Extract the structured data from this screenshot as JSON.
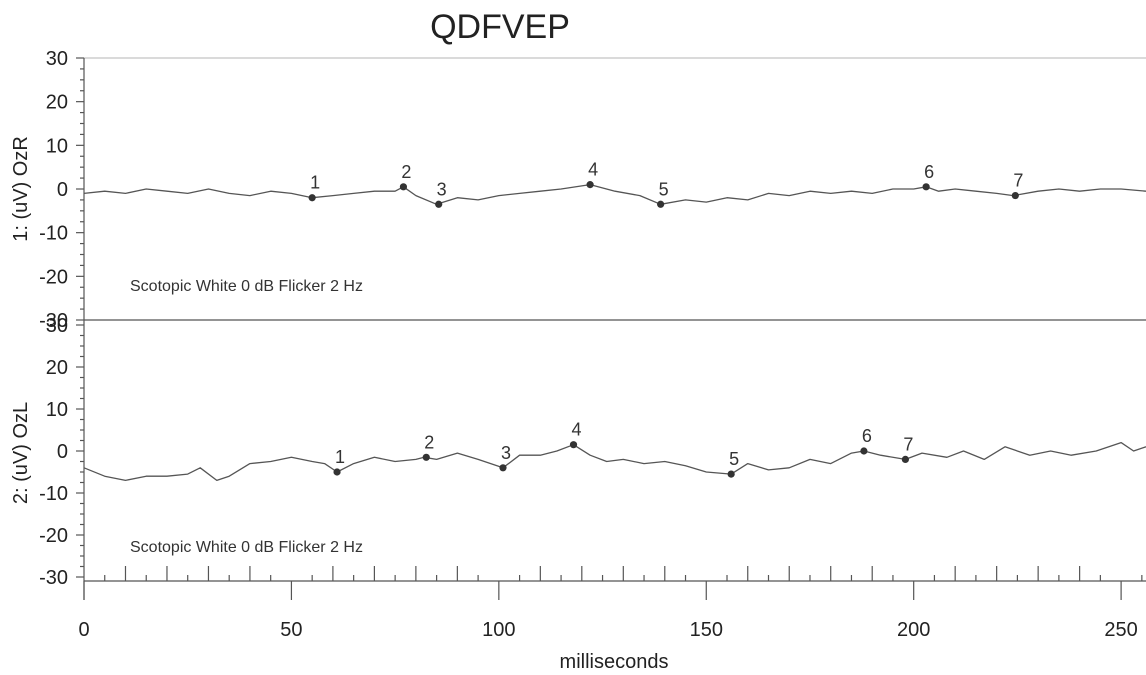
{
  "chart_data": {
    "type": "line",
    "title": "QDFVEP",
    "xlabel": "milliseconds",
    "xlim": [
      0,
      256
    ],
    "xticks": [
      0,
      50,
      100,
      150,
      200,
      250
    ],
    "panels": [
      {
        "ylabel": "1: (uV) OzR",
        "ylim": [
          -30,
          30
        ],
        "yticks": [
          30,
          20,
          10,
          0,
          -10,
          -20,
          -30
        ],
        "annotation": "Scotopic  White 0 dB Flicker 2 Hz",
        "series": {
          "x": [
            0,
            5,
            10,
            15,
            20,
            25,
            30,
            35,
            40,
            45,
            50,
            55,
            60,
            65,
            70,
            75,
            77,
            80,
            85,
            90,
            95,
            100,
            105,
            110,
            115,
            122,
            128,
            134,
            139,
            145,
            150,
            155,
            160,
            165,
            170,
            175,
            180,
            185,
            190,
            195,
            200,
            203,
            206,
            210,
            215,
            220,
            224,
            230,
            235,
            240,
            245,
            250,
            256
          ],
          "y": [
            -1,
            -0.5,
            -1,
            0,
            -0.5,
            -1,
            0,
            -1,
            -1.5,
            -0.5,
            -1,
            -2,
            -1.5,
            -1,
            -0.5,
            -0.5,
            0.5,
            -1.5,
            -3.5,
            -2,
            -2.5,
            -1.5,
            -1,
            -0.5,
            0,
            1,
            -0.5,
            -1.5,
            -3.5,
            -2.5,
            -3,
            -2,
            -2.5,
            -1,
            -1.5,
            -0.5,
            -1,
            -0.5,
            -1,
            0,
            0,
            0.5,
            -0.5,
            0,
            -0.5,
            -1,
            -1.5,
            -0.5,
            0,
            -0.5,
            0,
            0,
            -0.5
          ]
        },
        "markers": [
          {
            "label": "1",
            "x": 55,
            "y": -2
          },
          {
            "label": "2",
            "x": 77,
            "y": 0.5
          },
          {
            "label": "3",
            "x": 85.5,
            "y": -3.5
          },
          {
            "label": "4",
            "x": 122,
            "y": 1
          },
          {
            "label": "5",
            "x": 139,
            "y": -3.5
          },
          {
            "label": "6",
            "x": 203,
            "y": 0.5
          },
          {
            "label": "7",
            "x": 224.5,
            "y": -1.5
          }
        ]
      },
      {
        "ylabel": "2: (uV) OzL",
        "ylim": [
          -30,
          30
        ],
        "yticks": [
          30,
          20,
          10,
          0,
          -10,
          -20,
          -30
        ],
        "annotation": "Scotopic  White 0 dB Flicker 2 Hz",
        "series": {
          "x": [
            0,
            5,
            10,
            15,
            20,
            25,
            28,
            32,
            35,
            40,
            45,
            50,
            55,
            58,
            61,
            65,
            70,
            75,
            80,
            82,
            85,
            90,
            95,
            101,
            105,
            110,
            114,
            118,
            122,
            126,
            130,
            135,
            140,
            145,
            150,
            156,
            160,
            165,
            170,
            175,
            180,
            185,
            188,
            192,
            198,
            202,
            208,
            212,
            217,
            222,
            228,
            233,
            238,
            244,
            250,
            253,
            256
          ],
          "y": [
            -4,
            -6,
            -7,
            -6,
            -6,
            -5.5,
            -4,
            -7,
            -6,
            -3,
            -2.5,
            -1.5,
            -2.5,
            -3,
            -5,
            -3,
            -1.5,
            -2.5,
            -2,
            -1.5,
            -2,
            -0.5,
            -2,
            -4,
            -1,
            -1,
            0,
            1.5,
            -1,
            -2.5,
            -2,
            -3,
            -2.5,
            -3.5,
            -5,
            -5.5,
            -3,
            -4.5,
            -4,
            -2,
            -3,
            -0.5,
            0,
            -1,
            -2,
            -0.5,
            -1.5,
            0,
            -2,
            1,
            -1,
            0,
            -1,
            0,
            2,
            0,
            1
          ]
        },
        "markers": [
          {
            "label": "1",
            "x": 61,
            "y": -5
          },
          {
            "label": "2",
            "x": 82.5,
            "y": -1.5
          },
          {
            "label": "3",
            "x": 101,
            "y": -4
          },
          {
            "label": "4",
            "x": 118,
            "y": 1.5
          },
          {
            "label": "5",
            "x": 156,
            "y": -5.5
          },
          {
            "label": "6",
            "x": 188,
            "y": 0
          },
          {
            "label": "7",
            "x": 198,
            "y": -2
          }
        ]
      }
    ]
  }
}
